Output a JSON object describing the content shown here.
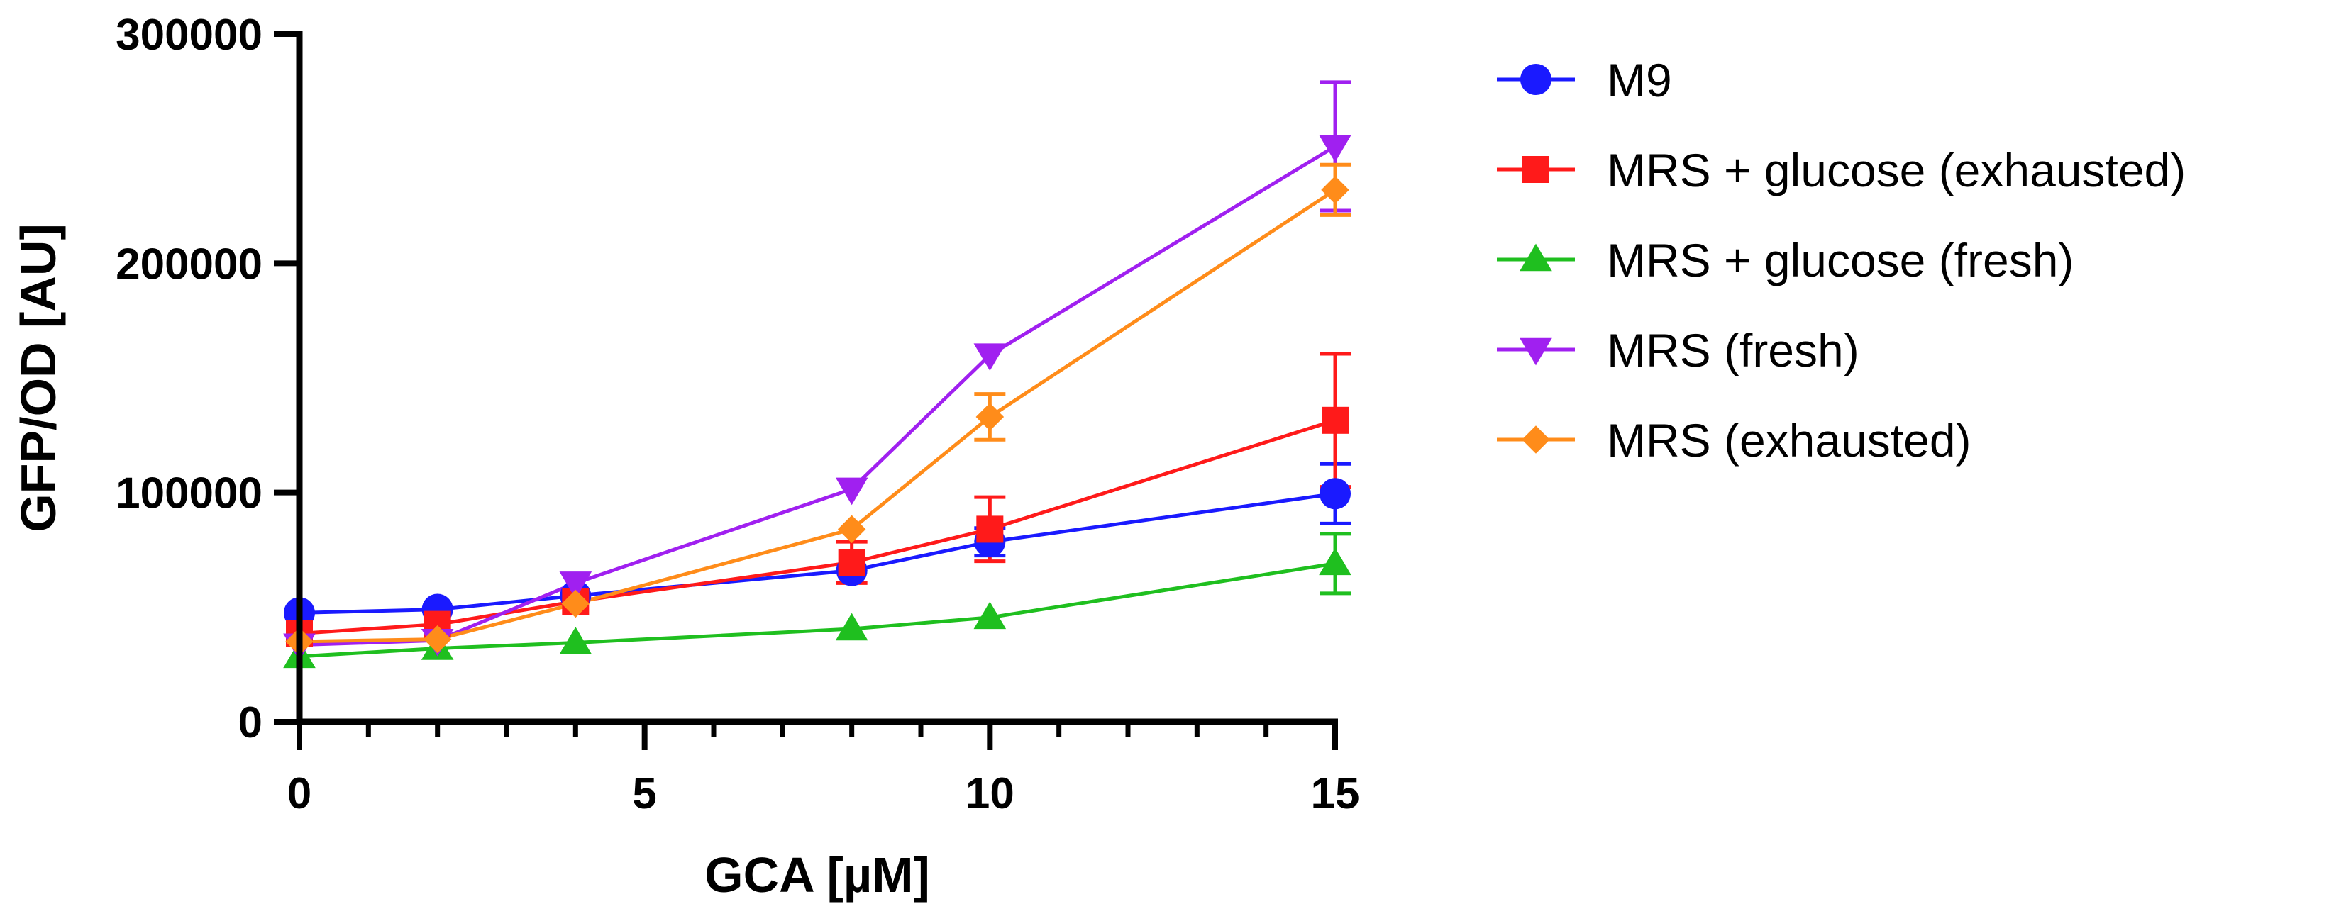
{
  "chart_data": {
    "type": "line",
    "title": "",
    "xlabel": "GCA [µM]",
    "ylabel": "GFP/OD [AU]",
    "xlim": [
      0,
      15
    ],
    "ylim": [
      0,
      300000
    ],
    "x_ticks": [
      0,
      5,
      10,
      15
    ],
    "x_tick_labels": [
      "0",
      "5",
      "10",
      "15"
    ],
    "x_minor_step": 1,
    "y_ticks": [
      0,
      100000,
      200000,
      300000
    ],
    "y_tick_labels": [
      "0",
      "100000",
      "200000",
      "300000"
    ],
    "grid": false,
    "legend_position": "right",
    "x": [
      0,
      2,
      4,
      8,
      10,
      15
    ],
    "series": [
      {
        "name": "M9",
        "color": "#1a1aff",
        "marker": "circle",
        "values": [
          47500,
          49000,
          55000,
          66000,
          78500,
          99500
        ],
        "errors": [
          0,
          0,
          0,
          0,
          6000,
          13000
        ]
      },
      {
        "name": "MRS + glucose (exhausted)",
        "color": "#ff1a1a",
        "marker": "square",
        "values": [
          38500,
          42500,
          52500,
          69500,
          84000,
          131500
        ],
        "errors": [
          0,
          0,
          0,
          9000,
          14000,
          29000
        ]
      },
      {
        "name": "MRS + glucose (fresh)",
        "color": "#1fbf1f",
        "marker": "triangle-up",
        "values": [
          28500,
          32000,
          34500,
          40500,
          45500,
          69000
        ],
        "errors": [
          0,
          0,
          0,
          0,
          0,
          13000
        ]
      },
      {
        "name": "MRS (fresh)",
        "color": "#a020f0",
        "marker": "triangle-down",
        "values": [
          33500,
          35500,
          60500,
          101500,
          160000,
          251000
        ],
        "errors": [
          0,
          0,
          0,
          0,
          0,
          28000
        ]
      },
      {
        "name": "MRS (exhausted)",
        "color": "#ff8c1a",
        "marker": "diamond",
        "values": [
          35000,
          36000,
          51500,
          84000,
          133000,
          232000
        ],
        "errors": [
          0,
          0,
          0,
          0,
          10000,
          11000
        ]
      }
    ]
  }
}
